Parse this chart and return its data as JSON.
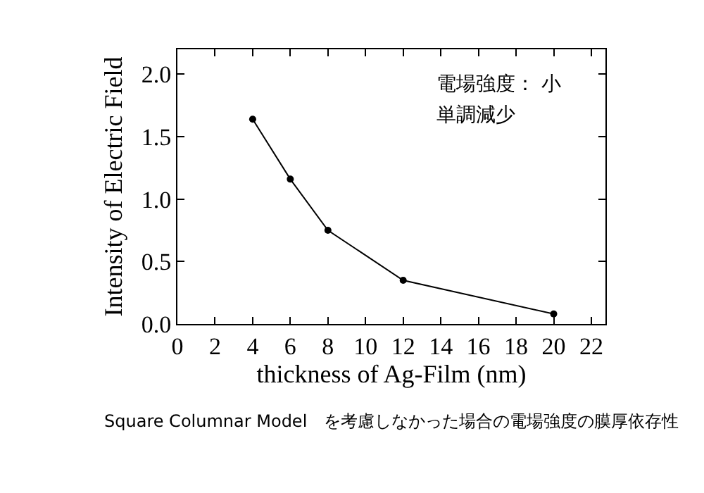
{
  "chart_data": {
    "type": "line",
    "xlabel": "thickness of Ag-Film (nm)",
    "ylabel": "Intensity of Electric Field",
    "x": [
      4,
      6,
      8,
      12,
      20
    ],
    "series": [
      {
        "color": "#000000",
        "values": [
          1.64,
          1.16,
          0.75,
          0.35,
          0.08
        ]
      }
    ],
    "xlim": [
      0,
      22.75
    ],
    "xticks": [
      0,
      2,
      4,
      6,
      8,
      10,
      12,
      14,
      16,
      18,
      20,
      22
    ],
    "ylim": [
      0,
      2.2
    ],
    "yticks": [
      {
        "value": 0,
        "label": "0.0"
      },
      {
        "value": 0.5,
        "label": "0.5"
      },
      {
        "value": 1,
        "label": "1.0"
      },
      {
        "value": 1.5,
        "label": "1.5"
      },
      {
        "value": 2,
        "label": "2.0"
      }
    ],
    "annotations": [
      "電場強度： 小",
      "単調減少",
      "Square Columnar Model　を考慮しなかった場合の電場強度の膜厚依存性"
    ],
    "legend": false,
    "marker": "circle",
    "line_style": "solid"
  }
}
